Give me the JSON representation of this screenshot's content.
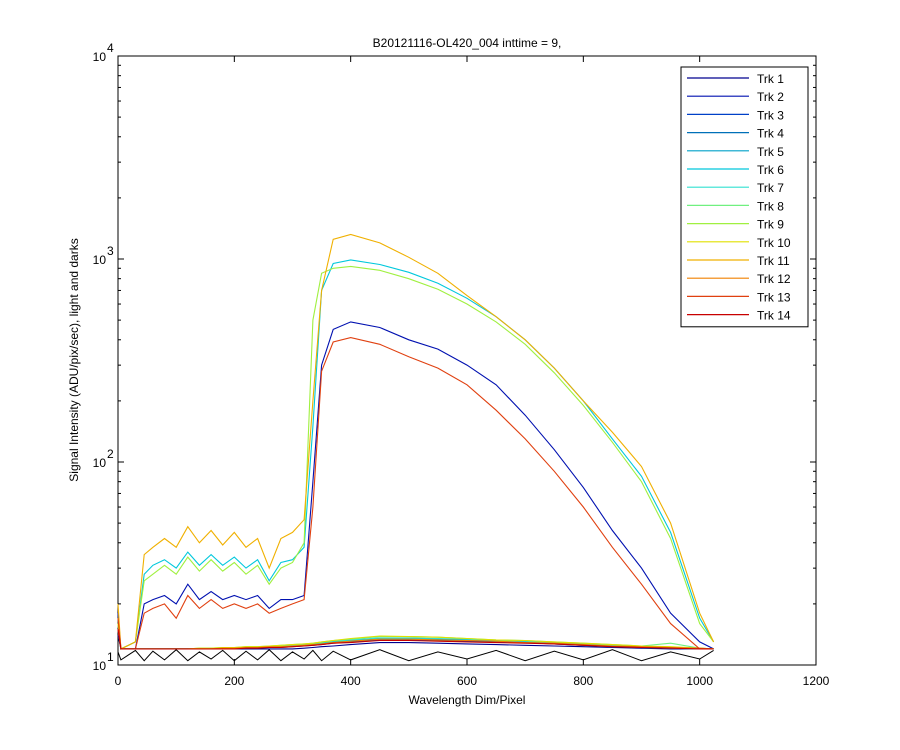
{
  "chart_data": {
    "type": "line",
    "title": "B20121116-OL420_004 inttime = 9,",
    "xlabel": "Wavelength Dim/Pixel",
    "ylabel": "Signal Intensity (ADU/pix/sec), light and darks",
    "yscale": "log",
    "legend": "northeast",
    "xlim": [
      0,
      1200
    ],
    "xticks": [
      0,
      200,
      400,
      600,
      800,
      1000,
      1200
    ],
    "ylim": [
      10,
      10000
    ],
    "yticks": [
      {
        "value": 10,
        "label": "10",
        "sup": "1"
      },
      {
        "value": 100,
        "label": "10",
        "sup": "2"
      },
      {
        "value": 1000,
        "label": "10",
        "sup": "3"
      },
      {
        "value": 10000,
        "label": "10",
        "sup": "4"
      }
    ],
    "x": [
      0,
      5,
      30,
      45,
      60,
      80,
      100,
      120,
      140,
      160,
      180,
      200,
      220,
      240,
      260,
      280,
      300,
      320,
      335,
      350,
      370,
      400,
      450,
      500,
      550,
      600,
      650,
      700,
      750,
      800,
      850,
      900,
      950,
      1000,
      1024
    ],
    "darks": {
      "color": "#000000",
      "values": [
        11.6,
        10.6,
        11.8,
        10.5,
        11.7,
        10.6,
        11.9,
        10.5,
        11.6,
        10.7,
        11.8,
        10.5,
        11.7,
        10.6,
        11.9,
        10.5,
        11.6,
        10.7,
        11.8,
        10.5,
        11.7,
        10.6,
        11.9,
        10.5,
        11.6,
        10.7,
        11.8,
        10.5,
        11.7,
        10.6,
        11.9,
        10.5,
        11.6,
        10.7,
        11.8
      ]
    },
    "series": [
      {
        "name": "Trk 1",
        "color": "#00008f",
        "values": [
          14,
          12,
          12,
          12,
          12,
          12,
          12,
          12,
          12,
          12,
          12,
          12,
          12,
          12,
          12,
          12,
          12,
          12.1,
          12.2,
          12.3,
          12.4,
          12.6,
          12.9,
          12.9,
          12.8,
          12.7,
          12.6,
          12.5,
          12.4,
          12.3,
          12.2,
          12.1,
          12,
          12,
          12
        ]
      },
      {
        "name": "Trk 2",
        "color": "#0010b0",
        "values": [
          18,
          12,
          12,
          20,
          21,
          22,
          20,
          25,
          21,
          23,
          21,
          22,
          21,
          22,
          19,
          21,
          21,
          22,
          80,
          300,
          450,
          490,
          460,
          400,
          360,
          300,
          240,
          170,
          115,
          75,
          46,
          30,
          18,
          13,
          12
        ]
      },
      {
        "name": "Trk 3",
        "color": "#0040c8",
        "values": [
          15,
          12,
          12,
          12,
          12,
          12,
          12,
          12,
          12,
          12,
          12,
          12,
          12.1,
          12.1,
          12.2,
          12.2,
          12.3,
          12.4,
          12.5,
          12.6,
          12.8,
          13,
          13.3,
          13.3,
          13.2,
          13.1,
          13,
          12.9,
          12.7,
          12.5,
          12.3,
          12.2,
          12.1,
          12,
          12
        ]
      },
      {
        "name": "Trk 4",
        "color": "#0070b8",
        "values": [
          15,
          12,
          12,
          12,
          12,
          12,
          12,
          12,
          12,
          12,
          12,
          12.1,
          12.1,
          12.2,
          12.2,
          12.3,
          12.4,
          12.5,
          12.6,
          12.7,
          12.9,
          13.1,
          13.4,
          13.4,
          13.3,
          13.2,
          13.1,
          12.9,
          12.7,
          12.5,
          12.3,
          12.2,
          12.1,
          12,
          12
        ]
      },
      {
        "name": "Trk 5",
        "color": "#00a0c8",
        "values": [
          16,
          12,
          12,
          12,
          12,
          12,
          12,
          12,
          12,
          12,
          12.1,
          12.1,
          12.2,
          12.2,
          12.3,
          12.3,
          12.4,
          12.5,
          12.6,
          12.8,
          13,
          13.2,
          13.5,
          13.5,
          13.4,
          13.3,
          13.1,
          13,
          12.8,
          12.6,
          12.4,
          12.2,
          12.1,
          12,
          12
        ]
      },
      {
        "name": "Trk 6",
        "color": "#00c8dc",
        "values": [
          17,
          12,
          13,
          28,
          31,
          33,
          30,
          36,
          31,
          35,
          31,
          34,
          30,
          33,
          26,
          32,
          33,
          38,
          150,
          700,
          950,
          990,
          940,
          860,
          760,
          640,
          520,
          400,
          290,
          200,
          130,
          85,
          45,
          17,
          13
        ]
      },
      {
        "name": "Trk 7",
        "color": "#30e0d0",
        "values": [
          16,
          12,
          12,
          12,
          12,
          12,
          12,
          12,
          12,
          12.1,
          12.1,
          12.2,
          12.2,
          12.3,
          12.3,
          12.4,
          12.5,
          12.6,
          12.7,
          12.9,
          13.1,
          13.3,
          13.6,
          13.6,
          13.5,
          13.4,
          13.2,
          13.1,
          12.9,
          12.7,
          12.5,
          12.3,
          12.2,
          12.1,
          12
        ]
      },
      {
        "name": "Trk 8",
        "color": "#70f080",
        "values": [
          16,
          12,
          12,
          12,
          12,
          12,
          12,
          12,
          12.1,
          12.1,
          12.2,
          12.2,
          12.3,
          12.3,
          12.4,
          12.5,
          12.6,
          12.7,
          12.8,
          13,
          13.2,
          13.4,
          13.8,
          13.8,
          13.7,
          13.5,
          13.3,
          13.2,
          13,
          12.8,
          12.6,
          12.4,
          12.8,
          12.1,
          12
        ]
      },
      {
        "name": "Trk 9",
        "color": "#a0f040",
        "values": [
          16,
          12,
          13,
          26,
          28,
          31,
          28,
          34,
          29,
          33,
          29,
          32,
          28,
          31,
          25,
          30,
          32,
          40,
          500,
          850,
          900,
          920,
          880,
          800,
          710,
          600,
          490,
          380,
          275,
          190,
          125,
          80,
          42,
          16,
          13
        ]
      },
      {
        "name": "Trk 10",
        "color": "#e0e000",
        "values": [
          16,
          12,
          12,
          12,
          12,
          12,
          12,
          12,
          12.1,
          12.1,
          12.2,
          12.2,
          12.3,
          12.3,
          12.4,
          12.5,
          12.6,
          12.7,
          12.8,
          13,
          13.2,
          13.5,
          13.9,
          13.8,
          13.7,
          13.5,
          13.3,
          13.2,
          13,
          12.8,
          12.6,
          12.4,
          12.3,
          12.1,
          12
        ]
      },
      {
        "name": "Trk 11",
        "color": "#f0b000",
        "values": [
          20,
          12,
          13,
          35,
          38,
          42,
          38,
          48,
          40,
          46,
          39,
          45,
          38,
          42,
          30,
          42,
          45,
          52,
          200,
          700,
          1250,
          1320,
          1200,
          1020,
          850,
          660,
          520,
          400,
          290,
          200,
          140,
          95,
          50,
          18,
          13
        ]
      },
      {
        "name": "Trk 12",
        "color": "#f08000",
        "values": [
          15,
          12,
          12,
          12,
          12,
          12,
          12,
          12,
          12,
          12,
          12.1,
          12.1,
          12.2,
          12.2,
          12.3,
          12.3,
          12.4,
          12.5,
          12.6,
          12.7,
          12.9,
          13.1,
          13.4,
          13.4,
          13.3,
          13.2,
          13.1,
          12.9,
          12.8,
          12.6,
          12.4,
          12.3,
          12.2,
          12.1,
          12
        ]
      },
      {
        "name": "Trk 13",
        "color": "#e04010",
        "values": [
          17,
          12,
          12,
          18,
          19,
          20,
          17,
          22,
          19,
          21,
          19,
          20,
          19,
          20,
          18,
          19,
          20,
          21,
          60,
          280,
          390,
          410,
          380,
          330,
          290,
          240,
          180,
          130,
          90,
          60,
          38,
          25,
          16,
          12,
          12
        ]
      },
      {
        "name": "Trk 14",
        "color": "#c80000",
        "values": [
          15,
          12,
          12,
          12,
          12,
          12,
          12,
          12,
          12,
          12,
          12,
          12,
          12.1,
          12.1,
          12.2,
          12.2,
          12.3,
          12.4,
          12.5,
          12.6,
          12.8,
          12.9,
          13.2,
          13.2,
          13.1,
          13,
          12.9,
          12.8,
          12.7,
          12.5,
          12.3,
          12.2,
          12.1,
          12,
          12
        ]
      }
    ]
  }
}
